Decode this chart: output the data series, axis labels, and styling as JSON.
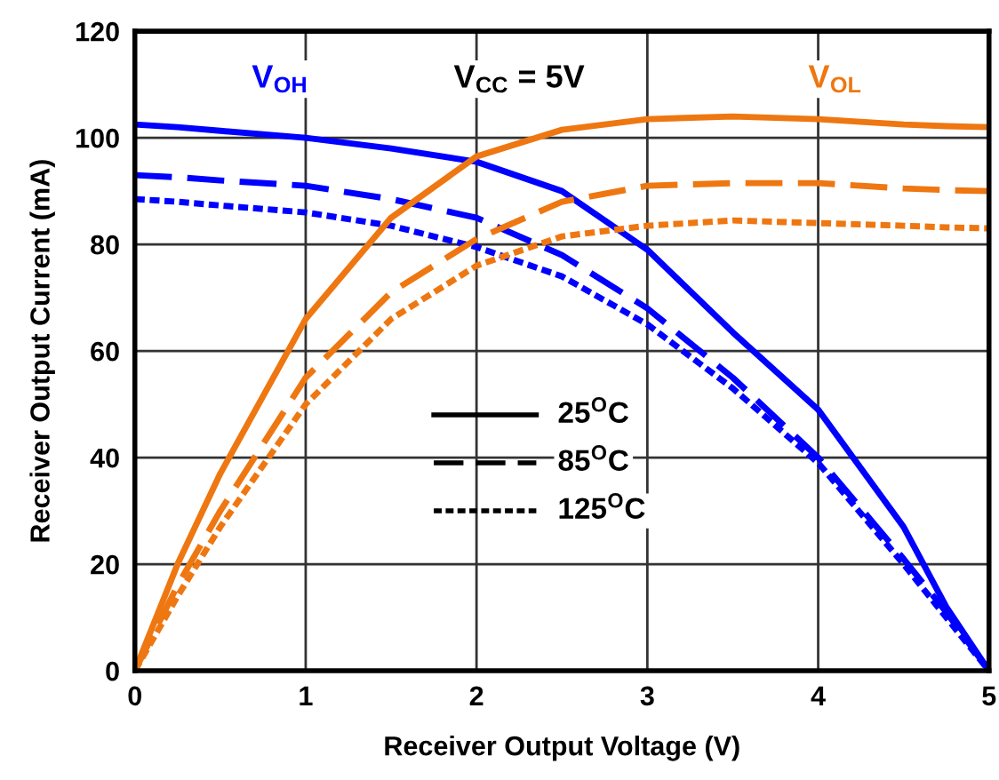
{
  "chart_data": {
    "type": "line",
    "xlabel": "Receiver Output Voltage (V)",
    "ylabel": "Receiver Output Current (mA)",
    "xlim": [
      0,
      5
    ],
    "ylim": [
      0,
      120
    ],
    "xticks": [
      0,
      1,
      2,
      3,
      4,
      5
    ],
    "yticks": [
      0,
      20,
      40,
      60,
      80,
      100,
      120
    ],
    "grid": true,
    "marker": "none",
    "x": [
      0,
      0.25,
      0.5,
      1,
      1.5,
      2,
      2.5,
      3,
      3.5,
      4,
      4.5,
      4.75,
      5
    ],
    "series": [
      {
        "color": "#0000ff",
        "line_style": "solid",
        "values": [
          102.5,
          102,
          101.3,
          100,
          98,
          95.5,
          90,
          79,
          63.5,
          49,
          27,
          12,
          0
        ]
      },
      {
        "color": "#0000ff",
        "line_style": "dashed",
        "values": [
          93,
          92.6,
          92,
          91,
          88.5,
          85,
          78,
          68,
          55,
          40,
          21,
          11,
          0
        ]
      },
      {
        "color": "#0000ff",
        "line_style": "dotted",
        "values": [
          88.5,
          88,
          87.3,
          86,
          83.5,
          79.5,
          74,
          65,
          53,
          39,
          20,
          10,
          0
        ]
      },
      {
        "color": "#ee7711",
        "line_style": "solid",
        "values": [
          0,
          20,
          37,
          66,
          85,
          96.5,
          101.5,
          103.5,
          104,
          103.5,
          102.5,
          102.2,
          102
        ]
      },
      {
        "color": "#ee7711",
        "line_style": "dashed",
        "values": [
          0,
          16,
          30,
          55,
          71,
          81,
          88,
          91,
          91.5,
          91.5,
          90.5,
          90.2,
          90
        ]
      },
      {
        "color": "#ee7711",
        "line_style": "dotted",
        "values": [
          0,
          14,
          27,
          50,
          66,
          76,
          81.5,
          83.5,
          84.5,
          84,
          83.5,
          83.2,
          83
        ]
      }
    ],
    "annotations": [
      "V$_{OH}$",
      "V$_{CC}$ = 5V",
      "V$_{OL}$",
      "25$^{O}$C",
      "85$^{O}$C",
      "125$^{O}$C"
    ]
  }
}
